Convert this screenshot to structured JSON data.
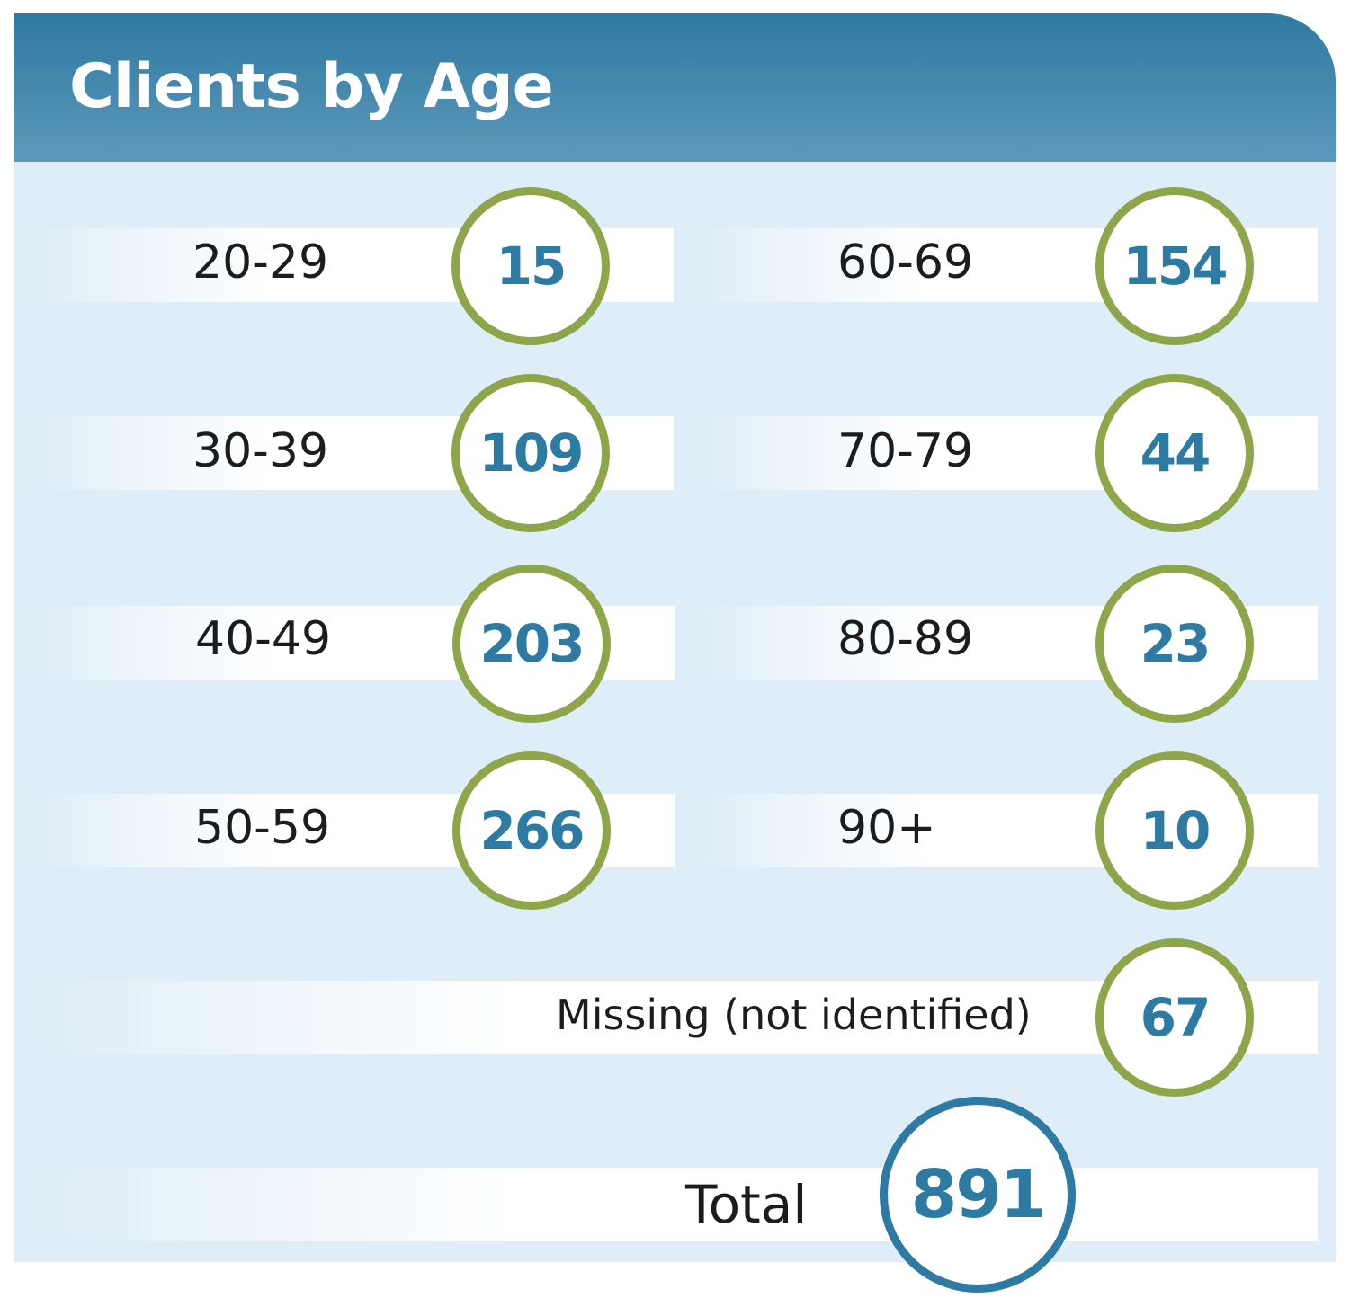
{
  "title": "Clients by Age",
  "left_column": [
    {
      "label": "20-29",
      "value": "15"
    },
    {
      "label": "30-39",
      "value": "109"
    },
    {
      "label": "40-49",
      "value": "203"
    },
    {
      "label": "50-59",
      "value": "266"
    }
  ],
  "right_column": [
    {
      "label": "60-69",
      "value": "154"
    },
    {
      "label": "70-79",
      "value": "44"
    },
    {
      "label": "80-89",
      "value": "23"
    },
    {
      "label": "90+",
      "value": "10"
    }
  ],
  "missing": {
    "label": "Missing (not identified)",
    "value": "67"
  },
  "total": {
    "label": "Total",
    "value": "891"
  },
  "colors": {
    "header": "#2f7aa0",
    "panel_background": "#deedf7",
    "number_text": "#2d7aa2",
    "circle_border": "#8fa54a",
    "total_circle_border": "#2d7aa2"
  }
}
